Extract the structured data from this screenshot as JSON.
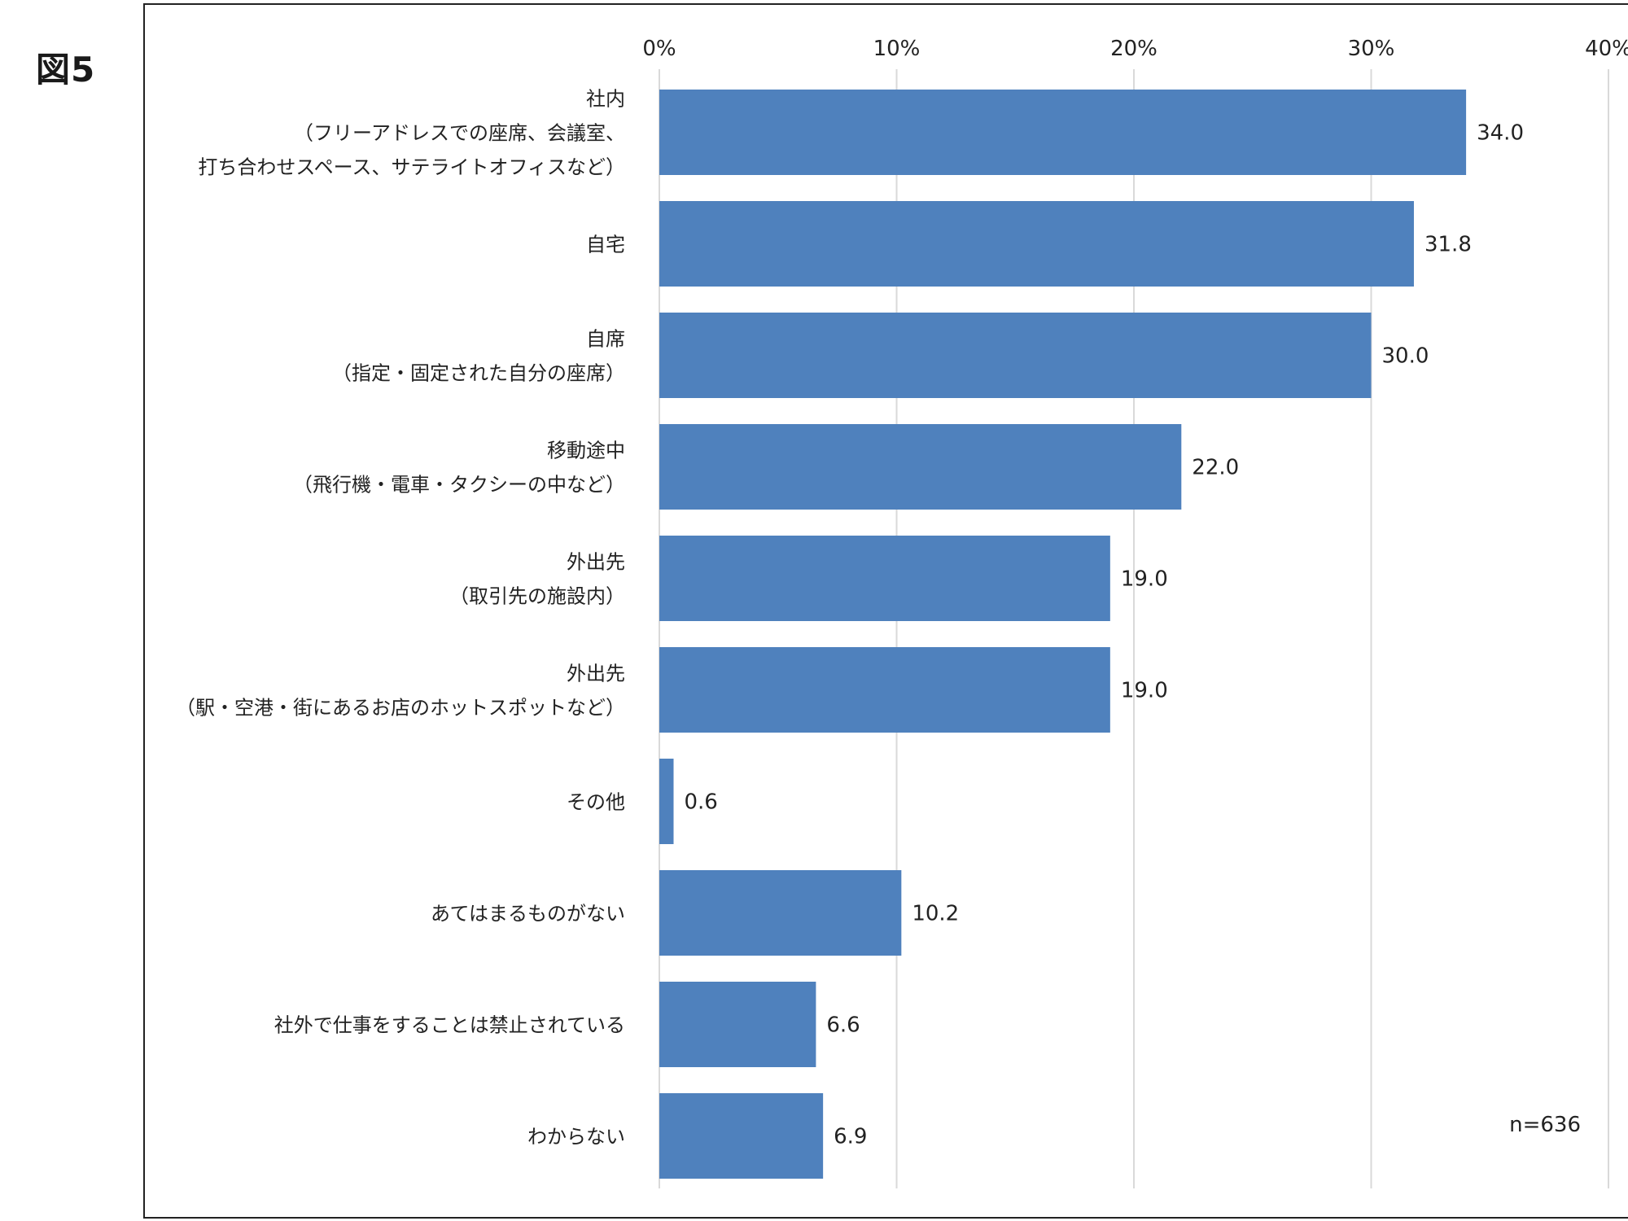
{
  "figure_label": "図5",
  "chart_data": {
    "type": "bar",
    "orientation": "horizontal",
    "categories": [
      [
        "社内",
        "（フリーアドレスでの座席、会議室、",
        "打ち合わせスペース、サテライトオフィスなど）"
      ],
      [
        "自宅"
      ],
      [
        "自席",
        "（指定・固定された自分の座席）"
      ],
      [
        "移動途中",
        "（飛行機・電車・タクシーの中など）"
      ],
      [
        "外出先",
        "（取引先の施設内）"
      ],
      [
        "外出先",
        "（駅・空港・街にあるお店のホットスポットなど）"
      ],
      [
        "その他"
      ],
      [
        "あてはまるものがない"
      ],
      [
        "社外で仕事をすることは禁止されている"
      ],
      [
        "わからない"
      ]
    ],
    "values": [
      34.0,
      31.8,
      30.0,
      22.0,
      19.0,
      19.0,
      0.6,
      10.2,
      6.6,
      6.9
    ],
    "value_labels": [
      "34.0",
      "31.8",
      "30.0",
      "22.0",
      "19.0",
      "19.0",
      "0.6",
      "10.2",
      "6.6",
      "6.9"
    ],
    "xlim": [
      0,
      40
    ],
    "x_ticks": [
      "0%",
      "10%",
      "20%",
      "30%",
      "40%"
    ],
    "x_tick_values": [
      0,
      10,
      20,
      30,
      40
    ],
    "grid": true,
    "axis_position": "top",
    "bar_color": "#4f81bd",
    "grid_color": "#d9d9d9",
    "note": "n=636"
  }
}
